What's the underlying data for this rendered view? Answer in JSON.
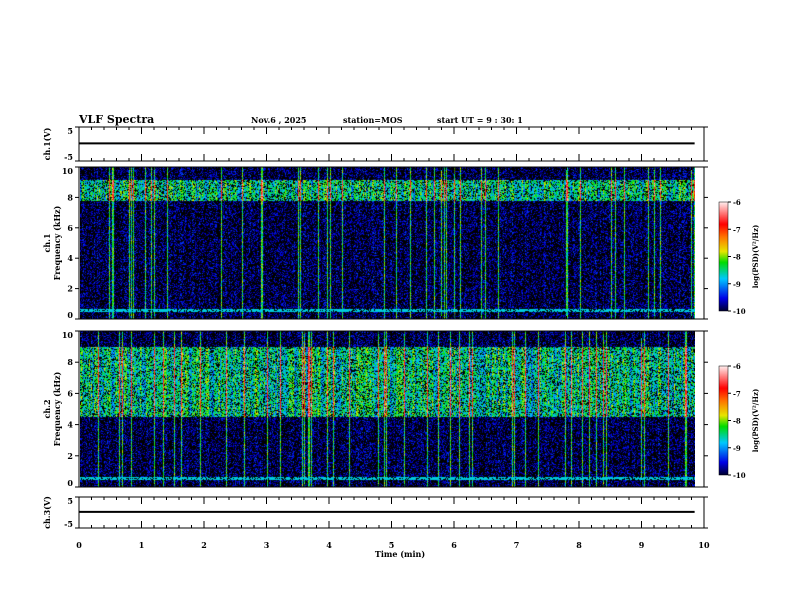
{
  "header": {
    "title": "VLF Spectra",
    "date": "Nov.6 , 2025",
    "station": "station=MOS",
    "start": "start UT = 9 : 30: 1"
  },
  "chart_data": {
    "type": "heatmap",
    "x_axis": {
      "label": "Time (min)",
      "range": [
        0,
        10
      ],
      "ticks": [
        "0",
        "1",
        "2",
        "3",
        "4",
        "5",
        "6",
        "7",
        "8",
        "9",
        "10"
      ]
    },
    "data_end_min": 9.85,
    "panels": [
      {
        "id": "ch1v",
        "type": "line",
        "ylabel": "ch.1(V)",
        "range": [
          -5,
          5
        ],
        "ticks": [
          "5",
          "-5"
        ],
        "level": 0.2
      },
      {
        "id": "ch1spec",
        "type": "heatmap",
        "ylabel": "ch.1\nFrequency (kHz)",
        "range": [
          0,
          10
        ],
        "ticks": [
          "0",
          "2",
          "4",
          "6",
          "8",
          "10"
        ],
        "colorbar": {
          "label": "log(PSD)(V²/Hz)",
          "range": [
            -10,
            -6
          ],
          "ticks": [
            "-6",
            "-7",
            "-8",
            "-9",
            "-10"
          ]
        }
      },
      {
        "id": "ch2spec",
        "type": "heatmap",
        "ylabel": "ch.2\nFrequency (kHz)",
        "range": [
          0,
          10
        ],
        "ticks": [
          "0",
          "2",
          "4",
          "6",
          "8",
          "10"
        ],
        "colorbar": {
          "label": "log(PSD)(V²/Hz)",
          "range": [
            -10,
            -6
          ],
          "ticks": [
            "-6",
            "-7",
            "-8",
            "-9",
            "-10"
          ]
        }
      },
      {
        "id": "ch3v",
        "type": "line",
        "ylabel": "ch.3(V)",
        "range": [
          -5,
          5
        ],
        "ticks": [
          "5",
          "-5"
        ],
        "level": 0.2
      }
    ]
  }
}
